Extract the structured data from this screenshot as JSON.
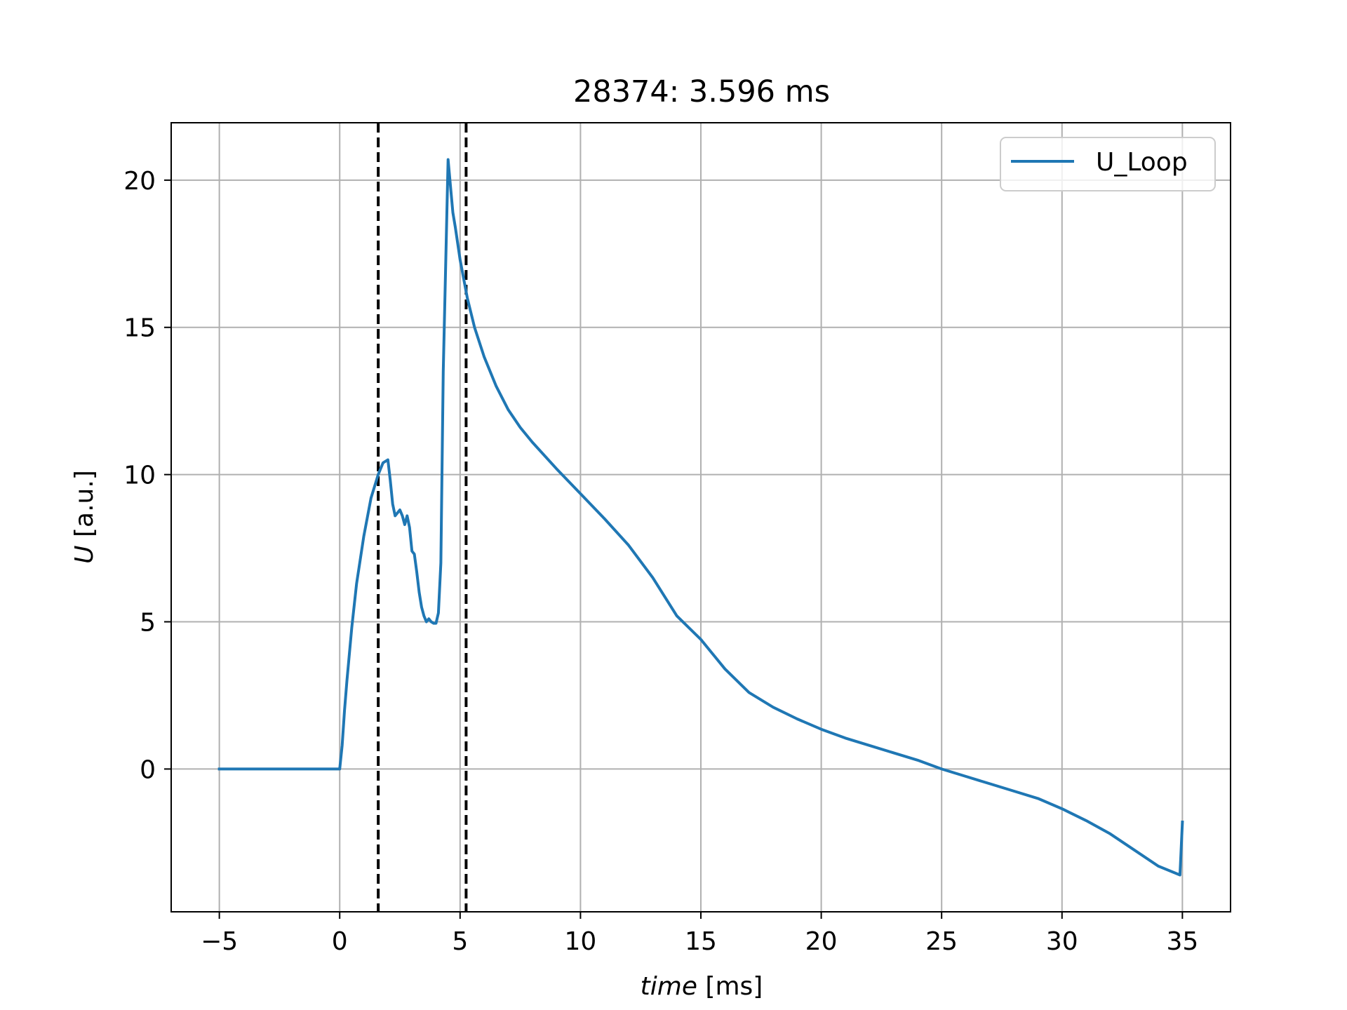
{
  "chart_data": {
    "type": "line",
    "title": "28374: 3.596 ms",
    "xlabel_italic": "time",
    "xlabel_unit": " [ms]",
    "ylabel_italic": "U",
    "ylabel_unit": " [a.u.]",
    "xlim": [
      -7,
      37
    ],
    "ylim": [
      -4.85,
      21.95
    ],
    "xticks": [
      -5,
      0,
      5,
      10,
      15,
      20,
      25,
      30,
      35
    ],
    "xtick_labels": [
      "−5",
      "0",
      "5",
      "10",
      "15",
      "20",
      "25",
      "30",
      "35"
    ],
    "yticks": [
      0,
      5,
      10,
      15,
      20
    ],
    "ytick_labels": [
      "0",
      "5",
      "10",
      "15",
      "20"
    ],
    "grid": true,
    "legend_position": "top-right",
    "colors": {
      "series": "#1f77b4",
      "grid": "#b0b0b0",
      "vline": "#000000"
    },
    "series": [
      {
        "name": "U_Loop",
        "x": [
          -5,
          -4,
          -3,
          -2,
          -1,
          -0.2,
          0,
          0.1,
          0.2,
          0.3,
          0.5,
          0.7,
          1.0,
          1.3,
          1.6,
          1.8,
          2.0,
          2.1,
          2.2,
          2.3,
          2.5,
          2.6,
          2.7,
          2.8,
          2.9,
          3.0,
          3.1,
          3.2,
          3.3,
          3.4,
          3.5,
          3.6,
          3.7,
          3.8,
          3.9,
          4.0,
          4.1,
          4.2,
          4.3,
          4.5,
          4.6,
          4.7,
          4.8,
          5.0,
          5.3,
          5.6,
          6.0,
          6.5,
          7.0,
          7.5,
          8.0,
          9.0,
          10.0,
          11.0,
          12.0,
          13.0,
          14.0,
          15.0,
          16.0,
          17.0,
          18.0,
          19.0,
          20.0,
          21.0,
          22.0,
          23.0,
          24.0,
          25.0,
          26.0,
          27.0,
          28.0,
          29.0,
          30.0,
          31.0,
          32.0,
          33.0,
          34.0,
          34.9,
          35.0
        ],
        "y": [
          0,
          0,
          0,
          0,
          0,
          0,
          0,
          0.8,
          2.0,
          3.0,
          4.8,
          6.3,
          7.9,
          9.2,
          10.0,
          10.4,
          10.5,
          9.8,
          9.0,
          8.6,
          8.8,
          8.6,
          8.3,
          8.6,
          8.2,
          7.4,
          7.3,
          6.7,
          6.0,
          5.5,
          5.2,
          5.0,
          5.1,
          5.0,
          4.95,
          4.95,
          5.3,
          7.0,
          13.5,
          20.7,
          19.8,
          18.9,
          18.4,
          17.3,
          16.0,
          15.0,
          14.0,
          13.0,
          12.2,
          11.6,
          11.1,
          10.2,
          9.35,
          8.5,
          7.6,
          6.5,
          5.2,
          4.4,
          3.4,
          2.6,
          2.1,
          1.7,
          1.35,
          1.05,
          0.8,
          0.55,
          0.3,
          0.0,
          -0.25,
          -0.5,
          -0.75,
          -1.0,
          -1.35,
          -1.75,
          -2.2,
          -2.75,
          -3.3,
          -3.6,
          -1.8
        ]
      }
    ],
    "vlines": [
      {
        "x": 1.6,
        "style": "dashed"
      },
      {
        "x": 5.25,
        "style": "dashed"
      }
    ]
  }
}
